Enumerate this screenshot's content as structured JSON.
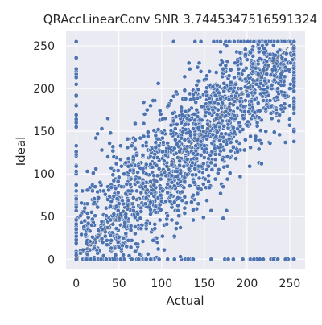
{
  "chart_data": {
    "type": "scatter",
    "title": "QRAccLinearConv SNR 3.7445347516591324",
    "xlabel": "Actual",
    "ylabel": "Ideal",
    "xlim": [
      -12,
      268
    ],
    "ylim": [
      -12,
      268
    ],
    "xticks": [
      0,
      50,
      100,
      150,
      200,
      250
    ],
    "yticks": [
      0,
      50,
      100,
      150,
      200,
      250
    ],
    "grid": true,
    "point_count": 5500,
    "point_value_range": [
      0,
      255
    ],
    "saturation_value": 255,
    "background_color": "#eaeaf2",
    "grid_color": "#ffffff",
    "point_color": "#4c72b0",
    "point_edge_color": "#ffffff",
    "diagonal_color": "#808080"
  }
}
